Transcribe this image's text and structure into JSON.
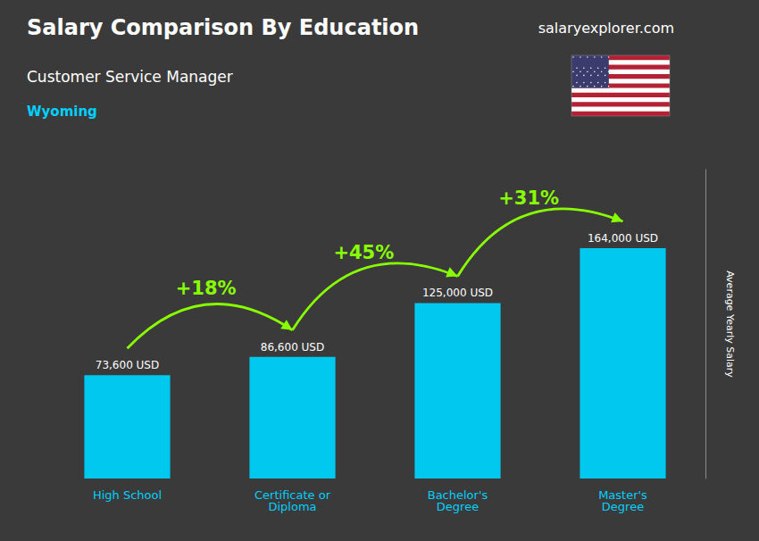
{
  "chart_data": {
    "type": "bar",
    "title": "Salary Comparison By Education",
    "subtitle": "Customer Service Manager",
    "ylabel": "Average Yearly Salary",
    "categories": [
      "High School",
      "Certificate or\nDiploma",
      "Bachelor's\nDegree",
      "Master's\nDegree"
    ],
    "values": [
      73600,
      86600,
      125000,
      164000
    ],
    "value_labels": [
      "73,600 USD",
      "86,600 USD",
      "125,000 USD",
      "164,000 USD"
    ],
    "data_labels": true,
    "color": "#00c8ee",
    "ylim": [
      0,
      220000
    ],
    "grid": false,
    "tick_labels": "x",
    "annotations": [
      {
        "text": "Wyoming"
      },
      {
        "text": "salaryexplorer.com"
      },
      {
        "text": "+18%",
        "from": "High School",
        "to": "Certificate or\nDiploma"
      },
      {
        "text": "+45%",
        "from": "Certificate or\nDiploma",
        "to": "Bachelor's\nDegree"
      },
      {
        "text": "+31%",
        "from": "Bachelor's\nDegree",
        "to": "Master's\nDegree"
      }
    ]
  }
}
